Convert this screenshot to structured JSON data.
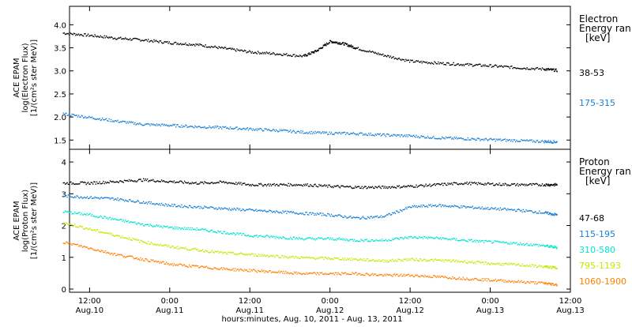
{
  "chart_data": {
    "type": "scatter",
    "xlabel": "hours:minutes, Aug. 10, 2011 - Aug. 13, 2011",
    "x_ticks": [
      {
        "time": "12:00",
        "date": "Aug.10"
      },
      {
        "time": "0:00",
        "date": "Aug.11"
      },
      {
        "time": "12:00",
        "date": "Aug.11"
      },
      {
        "time": "0:00",
        "date": "Aug.12"
      },
      {
        "time": "12:00",
        "date": "Aug.12"
      },
      {
        "time": "0:00",
        "date": "Aug.13"
      },
      {
        "time": "12:00",
        "date": "Aug.13"
      }
    ],
    "x_range_hours": [
      -3,
      72
    ],
    "panels": [
      {
        "id": "electron",
        "ylabel_lines": [
          "ACE EPAM",
          "log(Electron Flux)",
          "[1/(cm²s ster MeV)]"
        ],
        "ylim": [
          1.3,
          4.4
        ],
        "yticks": [
          "1.5",
          "2.0",
          "2.5",
          "3.0",
          "3.5",
          "4.0"
        ],
        "legend_title": [
          "Electron",
          "Energy ran",
          "[keV]"
        ],
        "series": [
          {
            "name": "38-53",
            "color": "#000000",
            "x": [
              -4,
              0,
              4,
              8,
              12,
              16,
              20,
              24,
              28,
              32,
              34,
              36,
              38,
              40,
              44,
              48,
              52,
              56,
              60,
              64,
              68,
              70
            ],
            "y": [
              3.83,
              3.78,
              3.72,
              3.68,
              3.62,
              3.58,
              3.5,
              3.42,
              3.38,
              3.33,
              3.45,
              3.65,
              3.6,
              3.5,
              3.35,
              3.22,
              3.18,
              3.15,
              3.12,
              3.08,
              3.05,
              3.02
            ]
          },
          {
            "name": "175-315",
            "color": "#1a7fd4",
            "x": [
              -4,
              0,
              4,
              8,
              12,
              16,
              20,
              24,
              28,
              32,
              36,
              40,
              44,
              48,
              52,
              56,
              60,
              64,
              68,
              70
            ],
            "y": [
              2.08,
              2.0,
              1.92,
              1.85,
              1.83,
              1.8,
              1.78,
              1.75,
              1.72,
              1.68,
              1.66,
              1.65,
              1.62,
              1.6,
              1.56,
              1.54,
              1.52,
              1.5,
              1.48,
              1.47
            ]
          }
        ]
      },
      {
        "id": "proton",
        "ylabel_lines": [
          "ACE EPAM",
          "log(Proton Flux)",
          "[1/(cm²s ster MeV)]"
        ],
        "ylim": [
          -0.1,
          4.4
        ],
        "yticks": [
          "0",
          "1",
          "2",
          "3",
          "4"
        ],
        "legend_title": [
          "Proton",
          "Energy ran",
          "[keV]"
        ],
        "series": [
          {
            "name": "47-68",
            "color": "#000000",
            "x": [
              -4,
              0,
              4,
              8,
              12,
              16,
              20,
              24,
              28,
              32,
              36,
              40,
              44,
              48,
              52,
              56,
              60,
              64,
              68,
              70
            ],
            "y": [
              3.35,
              3.35,
              3.4,
              3.45,
              3.4,
              3.35,
              3.38,
              3.3,
              3.3,
              3.3,
              3.25,
              3.22,
              3.22,
              3.25,
              3.3,
              3.35,
              3.32,
              3.3,
              3.3,
              3.3
            ]
          },
          {
            "name": "115-195",
            "color": "#1a7fd4",
            "x": [
              -4,
              0,
              4,
              8,
              12,
              16,
              20,
              24,
              28,
              32,
              36,
              40,
              44,
              48,
              52,
              56,
              60,
              64,
              68,
              70
            ],
            "y": [
              2.95,
              2.9,
              2.85,
              2.75,
              2.65,
              2.6,
              2.55,
              2.5,
              2.45,
              2.4,
              2.35,
              2.25,
              2.3,
              2.6,
              2.65,
              2.6,
              2.55,
              2.5,
              2.42,
              2.35
            ]
          },
          {
            "name": "310-580",
            "color": "#00e5d0",
            "x": [
              -4,
              0,
              4,
              8,
              12,
              16,
              20,
              24,
              28,
              32,
              36,
              40,
              44,
              48,
              52,
              56,
              60,
              64,
              68,
              70
            ],
            "y": [
              2.45,
              2.35,
              2.2,
              2.05,
              1.95,
              1.9,
              1.8,
              1.7,
              1.65,
              1.6,
              1.6,
              1.55,
              1.55,
              1.65,
              1.62,
              1.55,
              1.5,
              1.45,
              1.38,
              1.32
            ]
          },
          {
            "name": "795-1193",
            "color": "#c8e600",
            "x": [
              -4,
              0,
              4,
              8,
              12,
              16,
              20,
              24,
              28,
              32,
              36,
              40,
              44,
              48,
              52,
              56,
              60,
              64,
              68,
              70
            ],
            "y": [
              2.1,
              1.9,
              1.7,
              1.5,
              1.35,
              1.25,
              1.15,
              1.1,
              1.05,
              1.0,
              0.98,
              0.95,
              0.9,
              0.95,
              0.92,
              0.88,
              0.82,
              0.78,
              0.72,
              0.68
            ]
          },
          {
            "name": "1060-1900",
            "color": "#ff8000",
            "x": [
              -4,
              0,
              4,
              8,
              12,
              16,
              20,
              24,
              28,
              32,
              36,
              40,
              44,
              48,
              52,
              56,
              60,
              64,
              68,
              70
            ],
            "y": [
              1.5,
              1.3,
              1.1,
              0.95,
              0.8,
              0.72,
              0.65,
              0.6,
              0.55,
              0.5,
              0.5,
              0.5,
              0.45,
              0.45,
              0.4,
              0.35,
              0.3,
              0.25,
              0.2,
              0.15
            ]
          }
        ]
      }
    ]
  }
}
